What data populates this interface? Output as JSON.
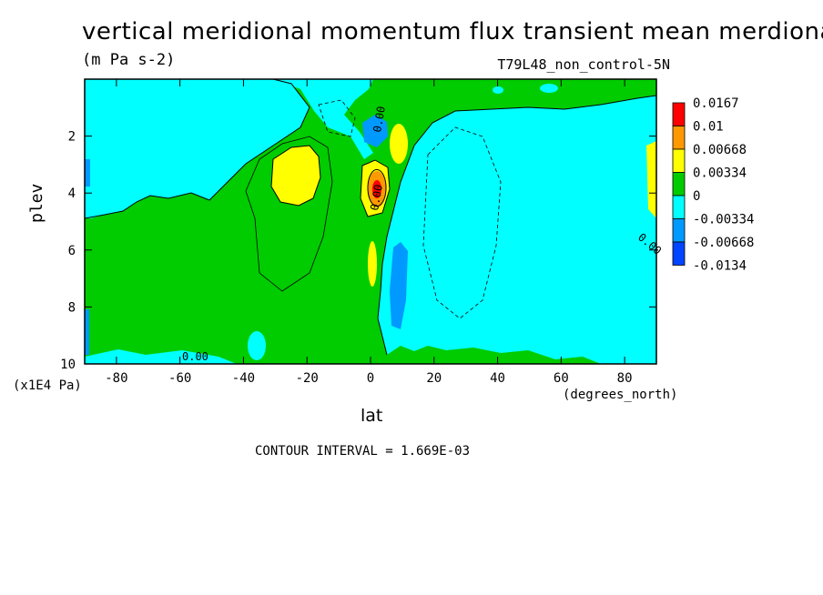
{
  "chart": {
    "title": "vertical meridional momentum flux transient mean merdional",
    "subtitle": "(m Pa s-2)",
    "run_label": "T79L48_non_control-5N",
    "ylabel": "plev",
    "yunit": "(x1E4 Pa)",
    "xlabel": "lat",
    "xunit": "(degrees_north)",
    "contour_interval": "CONTOUR INTERVAL = 1.669E-03"
  },
  "chart_data": {
    "type": "heatmap",
    "title": "vertical meridional momentum flux transient mean merdional",
    "xlabel": "lat",
    "ylabel": "plev",
    "xlim": [
      -90,
      90
    ],
    "ylim": [
      10,
      0
    ],
    "x_ticks": [
      -80,
      -60,
      -40,
      -20,
      0,
      20,
      40,
      60,
      80
    ],
    "y_ticks": [
      2,
      4,
      6,
      8,
      10
    ],
    "colorbar": {
      "labels": [
        "0.0167",
        "0.01",
        "0.00668",
        "0.00334",
        "0",
        "-0.00334",
        "-0.00668",
        "-0.0134"
      ],
      "colors": [
        "#ff0000",
        "#ff9900",
        "#ffff00",
        "#00cc00",
        "#00ffff",
        "#0099ff",
        "#0044ff"
      ]
    },
    "contour_labels": [
      "0.00",
      "0.00",
      "0.00",
      "0.00"
    ],
    "regions": [
      {
        "level": "0 to 0.00334",
        "x": [
          -90,
          90
        ],
        "y": [
          0,
          10
        ]
      },
      {
        "level": "-0.00334 to 0",
        "x": [
          -90,
          -40
        ],
        "y": [
          0.2,
          5
        ]
      },
      {
        "level": "0.00334 to 0.00668",
        "x": [
          -30,
          -15
        ],
        "y": [
          2.8,
          4.6
        ]
      },
      {
        "level": "0.0167 max",
        "x": [
          1,
          5
        ],
        "y": [
          3.6,
          4.2
        ]
      },
      {
        "level": "-0.00668 to -0.00334",
        "x": [
          8,
          13
        ],
        "y": [
          6,
          8.5
        ]
      },
      {
        "level": "-0.00334 to 0",
        "x": [
          8,
          90
        ],
        "y": [
          1.2,
          9.5
        ]
      }
    ]
  }
}
